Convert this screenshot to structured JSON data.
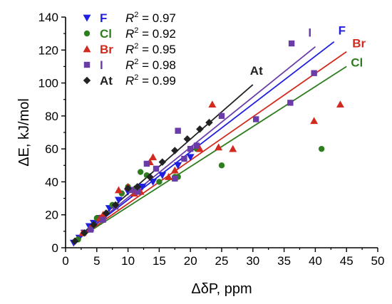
{
  "chart_data": {
    "type": "scatter",
    "xlabel": "ΔδP, ppm",
    "ylabel": "ΔE, kJ/mol",
    "xlim": [
      0,
      50
    ],
    "ylim": [
      0,
      140
    ],
    "xticks": [
      0,
      5,
      10,
      15,
      20,
      25,
      30,
      35,
      40,
      45,
      50
    ],
    "yticks": [
      0,
      20,
      40,
      60,
      80,
      100,
      120,
      140
    ],
    "grid": false,
    "legend_position": "top-left",
    "series": [
      {
        "name": "F",
        "r2": "0.97",
        "color": "#1f1fe0",
        "marker": "triangle-down",
        "line": {
          "x": [
            1,
            43
          ],
          "y": [
            3,
            125
          ]
        },
        "line_label": "F",
        "points": [
          [
            1.3,
            3
          ],
          [
            2.2,
            6
          ],
          [
            3,
            9
          ],
          [
            3.8,
            13
          ],
          [
            4.5,
            15
          ],
          [
            5.5,
            18
          ],
          [
            7,
            24
          ],
          [
            8.5,
            29
          ],
          [
            10,
            34
          ],
          [
            11,
            35
          ],
          [
            12.3,
            37
          ],
          [
            14,
            40
          ],
          [
            15.5,
            44
          ],
          [
            18,
            50
          ],
          [
            20,
            55
          ]
        ]
      },
      {
        "name": "Cl",
        "r2": "0.92",
        "color": "#2e7d1e",
        "marker": "circle",
        "line": {
          "x": [
            1,
            45
          ],
          "y": [
            3,
            110
          ]
        },
        "line_label": "Cl",
        "points": [
          [
            2,
            5
          ],
          [
            3,
            9
          ],
          [
            5,
            18
          ],
          [
            7.5,
            26
          ],
          [
            9,
            33
          ],
          [
            10,
            37
          ],
          [
            11.2,
            36
          ],
          [
            12,
            46
          ],
          [
            13,
            44
          ],
          [
            15,
            40
          ],
          [
            17.5,
            43
          ],
          [
            18,
            43
          ],
          [
            21,
            60
          ],
          [
            25,
            50
          ],
          [
            41,
            60
          ]
        ]
      },
      {
        "name": "Br",
        "r2": "0.95",
        "color": "#d12a1e",
        "marker": "triangle-up",
        "line": {
          "x": [
            1,
            45
          ],
          "y": [
            3,
            119
          ]
        },
        "line_label": "Br",
        "points": [
          [
            2.7,
            9
          ],
          [
            4,
            12
          ],
          [
            5.5,
            18
          ],
          [
            6,
            20
          ],
          [
            8.5,
            35
          ],
          [
            10,
            37
          ],
          [
            11,
            33
          ],
          [
            12,
            34
          ],
          [
            13.5,
            52
          ],
          [
            14,
            55
          ],
          [
            16.5,
            43
          ],
          [
            17.5,
            47
          ],
          [
            21.5,
            60
          ],
          [
            23.5,
            87
          ],
          [
            24.5,
            61
          ],
          [
            26.8,
            60
          ],
          [
            39.8,
            77
          ],
          [
            44,
            87
          ]
        ]
      },
      {
        "name": "I",
        "r2": "0.98",
        "color": "#6a3ca8",
        "marker": "square",
        "line": {
          "x": [
            1,
            40
          ],
          "y": [
            3,
            122
          ]
        },
        "line_label": "I",
        "points": [
          [
            4,
            11
          ],
          [
            6,
            17
          ],
          [
            8,
            25
          ],
          [
            10.5,
            35
          ],
          [
            11.5,
            34
          ],
          [
            13,
            51
          ],
          [
            14.5,
            48
          ],
          [
            17.5,
            42
          ],
          [
            18,
            71
          ],
          [
            19,
            54
          ],
          [
            20,
            60
          ],
          [
            21,
            62
          ],
          [
            25,
            80
          ],
          [
            30.5,
            78
          ],
          [
            36,
            88
          ],
          [
            36.2,
            124
          ],
          [
            39.8,
            106
          ]
        ]
      },
      {
        "name": "At",
        "r2": "0.99",
        "color": "#222222",
        "marker": "diamond",
        "line": {
          "x": [
            1,
            30
          ],
          "y": [
            3,
            99
          ]
        },
        "line_label": "At",
        "points": [
          [
            1.5,
            4
          ],
          [
            3,
            9
          ],
          [
            4.5,
            14
          ],
          [
            6.5,
            21
          ],
          [
            8,
            26
          ],
          [
            10,
            36
          ],
          [
            11.5,
            37
          ],
          [
            13.5,
            43
          ],
          [
            15.5,
            52
          ],
          [
            17.5,
            59
          ],
          [
            19.5,
            66
          ],
          [
            21.5,
            72
          ],
          [
            23,
            76
          ]
        ]
      }
    ]
  }
}
